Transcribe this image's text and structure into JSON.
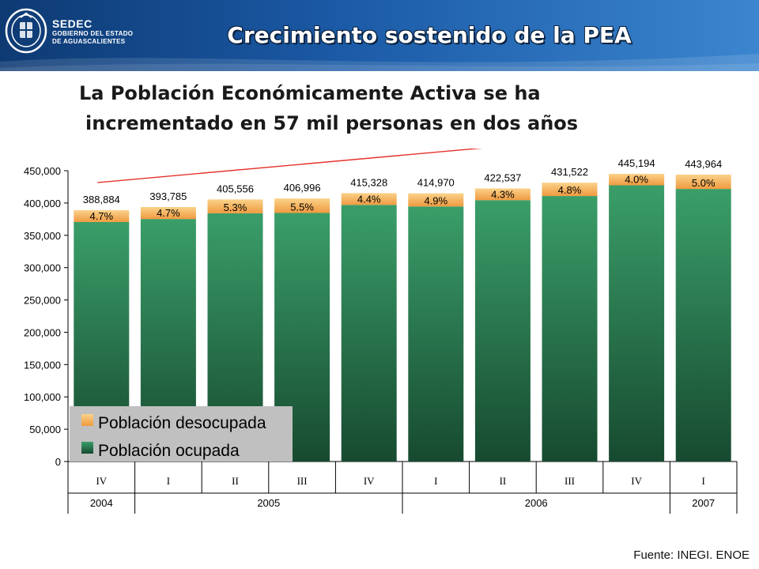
{
  "header": {
    "org_name": "SEDEC",
    "org_line1": "GOBIERNO DEL ESTADO",
    "org_line2": "DE AGUASCALIENTES",
    "title": "Crecimiento sostenido de la PEA"
  },
  "subtitle": {
    "line1": "La Población Económicamente Activa se ha",
    "line2": "incrementado en 57 mil personas en dos años"
  },
  "source": "Fuente: INEGI. ENOE",
  "colors": {
    "header_dark": "#0e3a73",
    "header_light": "#3b86cf",
    "employed_top": "#3a9e69",
    "employed_bottom": "#174a30",
    "unemployed_top": "#fbd28a",
    "unemployed_bottom": "#ef9a40",
    "trend_arrow": "#e5322b",
    "legend_bg": "#c0c0c0"
  },
  "chart_data": {
    "type": "bar",
    "stacked": true,
    "categories": [
      "IV",
      "I",
      "II",
      "III",
      "IV",
      "I",
      "II",
      "III",
      "IV",
      "I"
    ],
    "year_groups": [
      {
        "label": "2004",
        "span": 1
      },
      {
        "label": "2005",
        "span": 4
      },
      {
        "label": "2006",
        "span": 4
      },
      {
        "label": "2007",
        "span": 1
      }
    ],
    "totals": [
      388884,
      393785,
      405556,
      406996,
      415328,
      414970,
      422537,
      431522,
      445194,
      443964
    ],
    "total_labels": [
      "388,884",
      "393,785",
      "405,556",
      "406,996",
      "415,328",
      "414,970",
      "422,537",
      "431,522",
      "445,194",
      "443,964"
    ],
    "unemployment_rate_labels": [
      "4.7%",
      "4.7%",
      "5.3%",
      "5.5%",
      "4.4%",
      "4.9%",
      "4.3%",
      "4.8%",
      "4.0%",
      "5.0%"
    ],
    "unemployment_rate": [
      4.7,
      4.7,
      5.3,
      5.5,
      4.4,
      4.9,
      4.3,
      4.8,
      4.0,
      5.0
    ],
    "series": [
      {
        "name": "Población ocupada",
        "values": [
          370606,
          375277,
          384062,
          384611,
          397054,
          394636,
          404368,
          410809,
          427386,
          421766
        ]
      },
      {
        "name": "Población desocupada",
        "values": [
          18278,
          18508,
          21494,
          22385,
          18274,
          20334,
          18169,
          20713,
          17808,
          22198
        ]
      }
    ],
    "ylim": [
      0,
      450000
    ],
    "yticks": [
      0,
      50000,
      100000,
      150000,
      200000,
      250000,
      300000,
      350000,
      400000,
      450000
    ],
    "ytick_labels": [
      "0",
      "50,000",
      "100,000",
      "150,000",
      "200,000",
      "250,000",
      "300,000",
      "350,000",
      "400,000",
      "450,000"
    ],
    "grid": false,
    "legend": {
      "placement": "bottom-left",
      "entries": [
        "Población desocupada",
        "Población ocupada"
      ]
    },
    "trend_arrow": true
  }
}
